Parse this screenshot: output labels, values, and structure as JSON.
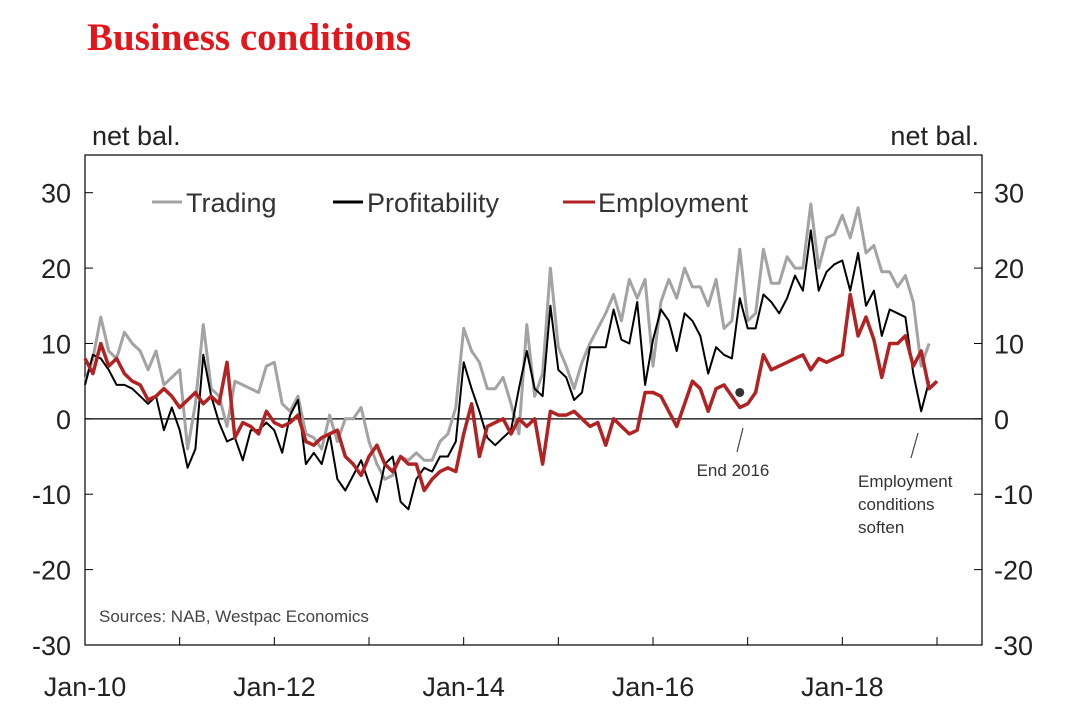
{
  "chart_data": {
    "type": "line",
    "title": "Business conditions",
    "ylabel_left": "net bal.",
    "ylabel_right": "net bal.",
    "ylim": [
      -30,
      35
    ],
    "yticks": [
      30,
      20,
      10,
      0,
      -10,
      -20,
      -30
    ],
    "ytick_labels": [
      "30",
      "20",
      "10",
      "0",
      "-10",
      "-20",
      "-30"
    ],
    "xlim": [
      0,
      114
    ],
    "xticks": [
      0,
      24,
      48,
      72,
      96
    ],
    "xtick_labels": [
      "Jan-10",
      "Jan-12",
      "Jan-14",
      "Jan-16",
      "Jan-18"
    ],
    "legend": {
      "placement": "top-left",
      "entries": [
        "Trading",
        "Profitability",
        "Employment"
      ]
    },
    "source": "Sources: NAB, Westpac Economics",
    "annotations": [
      {
        "text": [
          "End 2016"
        ],
        "x": 83,
        "y": 3.5
      },
      {
        "text": [
          "Employment",
          "conditions",
          "soften"
        ],
        "x": 107,
        "y": 1.5
      }
    ],
    "series": [
      {
        "name": "Trading",
        "color": "#a3a3a3",
        "values": [
          5,
          8,
          13.5,
          9,
          8,
          11.5,
          10,
          9,
          6.5,
          9,
          4.5,
          5.5,
          6.5,
          -4,
          2,
          12.5,
          4,
          3,
          -1,
          5,
          4.5,
          4,
          3.5,
          7,
          7.5,
          2,
          1,
          3,
          -2,
          -2.5,
          -4,
          0.5,
          -3,
          0,
          0,
          1.5,
          -3,
          -6,
          -8,
          -7.5,
          -5,
          -5.5,
          -4.5,
          -5.5,
          -5.5,
          -3,
          -2,
          1.5,
          12,
          9,
          7.5,
          4,
          4,
          5.5,
          2,
          -2,
          12.5,
          3,
          6,
          20,
          9.5,
          7,
          4,
          7.5,
          10,
          12,
          14,
          16.5,
          13,
          18.5,
          16,
          18.5,
          7,
          15.5,
          18.5,
          16,
          20,
          17.5,
          17.5,
          15,
          18.5,
          12,
          13,
          22.5,
          13,
          14,
          22.5,
          18,
          18,
          21.5,
          20,
          20,
          28.5,
          20,
          24,
          24.5,
          27,
          24,
          28,
          22,
          23,
          19.5,
          19.5,
          17.5,
          19,
          15.5,
          7,
          10
        ]
      },
      {
        "name": "Profitability",
        "color": "#000000",
        "values": [
          4.5,
          8.5,
          8,
          6.5,
          4.5,
          4.5,
          4,
          3,
          2,
          3,
          -1.5,
          1.5,
          -1.5,
          -6.5,
          -4,
          8.5,
          3,
          -0.5,
          -3,
          -2.5,
          -5.5,
          -1.5,
          -1.5,
          -0.5,
          -1.5,
          -4.5,
          0.5,
          2.5,
          -6,
          -4.5,
          -6,
          -2,
          -8,
          -9.5,
          -7.5,
          -5.5,
          -8.5,
          -11,
          -6,
          -5,
          -11,
          -12,
          -8,
          -6.5,
          -7,
          -5,
          -5,
          -3,
          7.5,
          4,
          1,
          -2.5,
          -3.5,
          -2.5,
          -1.5,
          4,
          9,
          4,
          3,
          15,
          6.5,
          5.5,
          2.5,
          3.5,
          9.5,
          9.5,
          9.5,
          14.5,
          10.5,
          10,
          15.5,
          4.5,
          10.5,
          14.5,
          13,
          9,
          14,
          13,
          11,
          6,
          9.5,
          8.5,
          8,
          16,
          12,
          12,
          16.5,
          15.5,
          14,
          16,
          19,
          17,
          25,
          17,
          19.5,
          20.5,
          21,
          17,
          22,
          15,
          17,
          11,
          14.5,
          14,
          13.5,
          6,
          1,
          5
        ]
      },
      {
        "name": "Employment",
        "color": "#b22222",
        "values": [
          8,
          6,
          10,
          7,
          8,
          6,
          5,
          4.5,
          2.5,
          3,
          4,
          3,
          1.5,
          2.5,
          3.5,
          2,
          3,
          2,
          7.5,
          -2.5,
          -0.5,
          -1,
          -2,
          1,
          -0.5,
          -1,
          -0.5,
          0.5,
          -3,
          -3.5,
          -2.5,
          -2,
          -1.5,
          -5,
          -6,
          -7.5,
          -5,
          -3.5,
          -6,
          -7,
          -5,
          -6,
          -6,
          -9.5,
          -8,
          -7,
          -6.5,
          -7,
          -2,
          2,
          -5,
          -1,
          -0.5,
          0,
          -2,
          0,
          -1,
          0,
          -6,
          1,
          0.5,
          0.5,
          1,
          0,
          -1,
          -0.5,
          -3.5,
          0,
          -1,
          -2,
          -1.5,
          3.5,
          3.5,
          3,
          1,
          -1,
          2,
          5,
          4,
          1,
          4,
          4.5,
          3,
          1.5,
          2,
          3.5,
          8.5,
          6.5,
          7,
          7.5,
          8,
          8.5,
          6.5,
          8,
          7.5,
          8,
          8.5,
          16.5,
          11,
          13.5,
          10.5,
          5.5,
          10,
          10,
          11,
          7,
          9,
          4,
          5
        ]
      }
    ]
  }
}
